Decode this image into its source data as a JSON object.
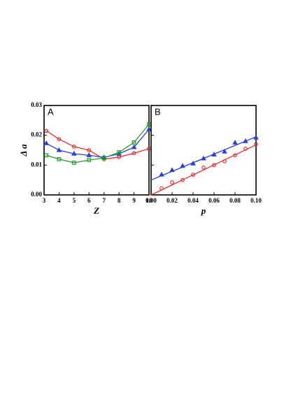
{
  "chart_data": [
    {
      "type": "line",
      "panel_label": "A",
      "xlabel": "Z",
      "ylabel": "Δ a",
      "xlim": [
        3,
        10
      ],
      "ylim": [
        0,
        0.03
      ],
      "xticks": [
        3,
        4,
        5,
        6,
        7,
        8,
        9,
        10
      ],
      "yticks": [
        {
          "value": 0,
          "label": "0.00"
        },
        0.01,
        0.02,
        0.03
      ],
      "ytick_labels": true,
      "x": [
        3.15,
        4,
        5,
        6,
        7,
        8,
        9,
        10
      ],
      "series": [
        {
          "color": "#e8312f",
          "marker": "circle",
          "values": [
            0.0215,
            0.0187,
            0.0162,
            0.015,
            0.012,
            0.0127,
            0.014,
            0.0155
          ]
        },
        {
          "color": "#2a3fd6",
          "marker": "triangle",
          "values": [
            0.0173,
            0.015,
            0.0138,
            0.0133,
            0.0126,
            0.0138,
            0.016,
            0.022
          ]
        },
        {
          "color": "#27a02a",
          "marker": "square",
          "values": [
            0.0133,
            0.012,
            0.0108,
            0.0117,
            0.0124,
            0.0143,
            0.0176,
            0.0237
          ]
        }
      ]
    },
    {
      "type": "scatter",
      "panel_label": "B",
      "xlabel": "p",
      "xlim": [
        0,
        0.1
      ],
      "ylim": [
        0,
        0.03
      ],
      "xticks": [
        {
          "value": 0,
          "label": "0.00"
        },
        0.02,
        0.04,
        0.06,
        0.08,
        {
          "value": 0.1,
          "label": "0.10"
        }
      ],
      "yticks": [
        0,
        0.01,
        0.02,
        0.03
      ],
      "ytick_labels": false,
      "series": [
        {
          "color": "#2a3fd6",
          "marker": "triangle",
          "x": [
            0.01,
            0.02,
            0.03,
            0.04,
            0.05,
            0.06,
            0.07,
            0.08,
            0.09,
            0.1
          ],
          "values": [
            0.0068,
            0.0083,
            0.0097,
            0.0105,
            0.0122,
            0.0135,
            0.0145,
            0.0175,
            0.018,
            0.0192
          ]
        },
        {
          "color": "#e8312f",
          "marker": "circle",
          "x": [
            0.01,
            0.02,
            0.03,
            0.04,
            0.05,
            0.06,
            0.07,
            0.08,
            0.09,
            0.1
          ],
          "values": [
            0.0022,
            0.0042,
            0.005,
            0.0068,
            0.0092,
            0.01,
            0.0113,
            0.0133,
            0.0155,
            0.017
          ]
        },
        {
          "color": "#2a3fd6",
          "marker": "none",
          "x": [
            0,
            0.1
          ],
          "values": [
            0.005,
            0.0195
          ]
        },
        {
          "color": "#e8312f",
          "marker": "none",
          "x": [
            0,
            0.1
          ],
          "values": [
            0,
            0.0168
          ]
        }
      ]
    }
  ]
}
